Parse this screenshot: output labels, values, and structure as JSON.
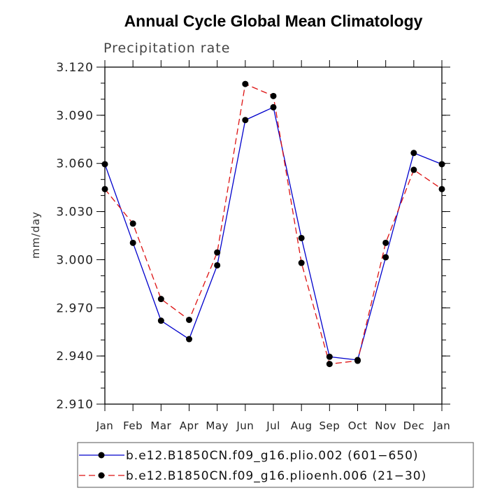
{
  "chart_data": {
    "type": "line",
    "title": "Annual Cycle Global Mean Climatology",
    "subtitle": "Precipitation rate",
    "xlabel": "",
    "ylabel": "mm/day",
    "ylim": [
      2.91,
      3.12
    ],
    "yticks": [
      "3.120",
      "3.090",
      "3.060",
      "3.030",
      "3.000",
      "2.970",
      "2.940",
      "2.910"
    ],
    "categories": [
      "Jan",
      "Feb",
      "Mar",
      "Apr",
      "May",
      "Jun",
      "Jul",
      "Aug",
      "Sep",
      "Oct",
      "Nov",
      "Dec",
      "Jan"
    ],
    "series": [
      {
        "name": "b.e12.B1850CN.f09_g16.plio.002 (601−650)",
        "color": "#0000cc",
        "dash": "solid",
        "values": [
          3.0595,
          3.0105,
          2.962,
          2.9505,
          2.9965,
          3.087,
          3.095,
          3.0135,
          2.9395,
          2.9375,
          3.0015,
          3.0665,
          3.0595
        ]
      },
      {
        "name": "b.e12.B1850CN.f09_g16.plioenh.006 (21−30)",
        "color": "#dd1111",
        "dash": "dashed",
        "values": [
          3.044,
          3.0225,
          2.9755,
          2.9625,
          3.0045,
          3.1095,
          3.102,
          2.998,
          2.935,
          2.937,
          3.0105,
          3.056,
          3.044
        ]
      }
    ]
  }
}
